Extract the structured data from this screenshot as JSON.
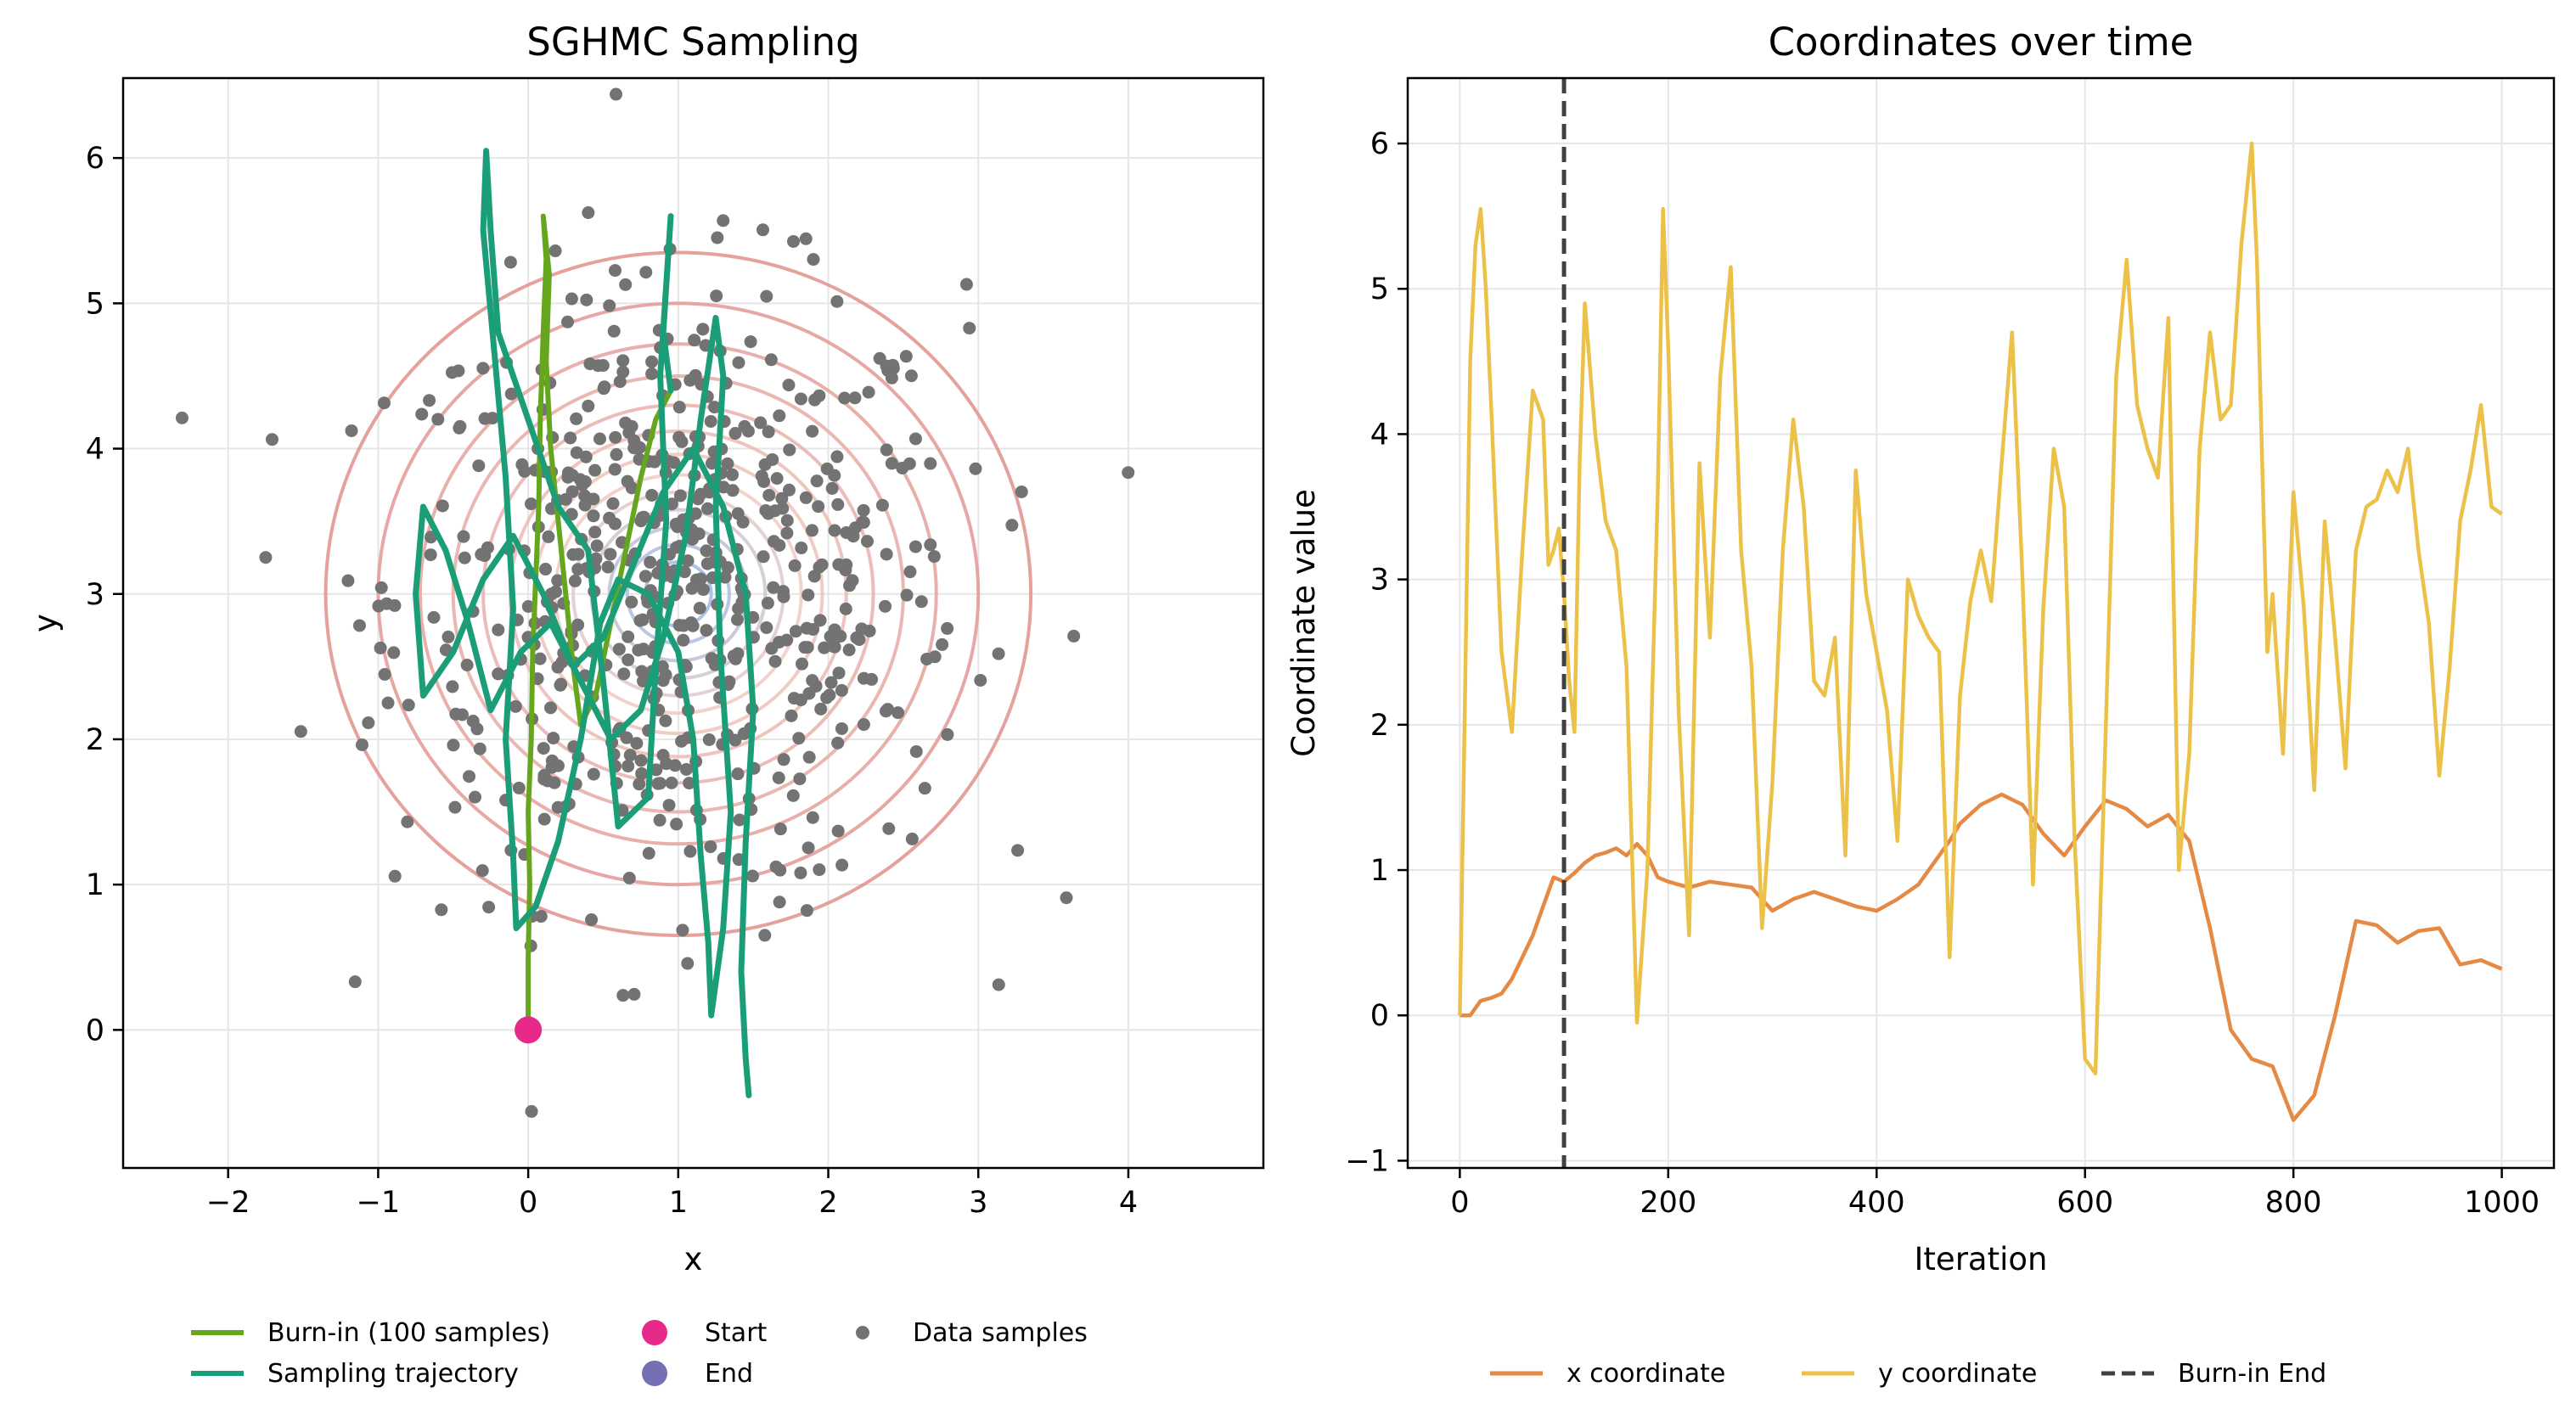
{
  "figure": {
    "colors": {
      "burnin": "#66a61e",
      "trajectory": "#1b9e77",
      "start": "#e7298a",
      "end": "#7570b3",
      "data_samples": "#737373",
      "x_coord": "#e58a45",
      "y_coord": "#ecc14a",
      "burnin_end": "#404040",
      "contour_outer": "#e1918d",
      "contour_inner": "#9db7e6"
    }
  },
  "chart_data": [
    {
      "type": "scatter",
      "title": "SGHMC Sampling",
      "xlabel": "x",
      "ylabel": "y",
      "xlim": [
        -2.7,
        4.9
      ],
      "ylim": [
        -0.95,
        6.55
      ],
      "xticks": [
        -2,
        -1,
        0,
        1,
        2,
        3,
        4
      ],
      "yticks": [
        0,
        1,
        2,
        3,
        4,
        5,
        6
      ],
      "grid": true,
      "legend": {
        "placement": "below",
        "entries": [
          {
            "label": "Burn-in (100 samples)",
            "kind": "line",
            "color_key": "burnin"
          },
          {
            "label": "Start",
            "kind": "marker",
            "color_key": "start"
          },
          {
            "label": "Data samples",
            "kind": "dot",
            "color_key": "data_samples"
          },
          {
            "label": "Sampling trajectory",
            "kind": "line",
            "color_key": "trajectory"
          },
          {
            "label": "End",
            "kind": "marker",
            "color_key": "end"
          }
        ]
      },
      "contours": {
        "center": [
          1.0,
          3.0
        ],
        "radii": [
          2.35,
          2.0,
          1.72,
          1.5,
          1.3,
          1.12,
          0.96,
          0.82,
          0.7,
          0.58,
          0.46,
          0.34,
          0.22
        ]
      },
      "series": [
        {
          "name": "Burn-in (100 samples)",
          "points": [
            [
              0.0,
              0.0
            ],
            [
              0.0,
              0.5
            ],
            [
              0.01,
              1.0
            ],
            [
              0.0,
              1.5
            ],
            [
              0.02,
              2.0
            ],
            [
              0.03,
              2.6
            ],
            [
              0.05,
              3.1
            ],
            [
              0.07,
              3.6
            ],
            [
              0.08,
              4.2
            ],
            [
              0.1,
              4.8
            ],
            [
              0.12,
              5.3
            ],
            [
              0.1,
              5.6
            ],
            [
              0.14,
              5.2
            ],
            [
              0.12,
              4.6
            ],
            [
              0.15,
              4.0
            ],
            [
              0.2,
              3.5
            ],
            [
              0.25,
              3.0
            ],
            [
              0.3,
              2.5
            ],
            [
              0.35,
              2.1
            ],
            [
              0.45,
              2.3
            ],
            [
              0.55,
              2.8
            ],
            [
              0.65,
              3.3
            ],
            [
              0.75,
              3.8
            ],
            [
              0.85,
              4.2
            ],
            [
              0.95,
              4.4
            ]
          ]
        },
        {
          "name": "Sampling trajectory",
          "points": [
            [
              0.95,
              4.4
            ],
            [
              0.9,
              4.8
            ],
            [
              0.95,
              5.6
            ],
            [
              0.88,
              4.5
            ],
            [
              0.92,
              3.5
            ],
            [
              0.85,
              2.5
            ],
            [
              0.8,
              1.6
            ],
            [
              0.6,
              1.4
            ],
            [
              0.5,
              2.4
            ],
            [
              0.4,
              3.3
            ],
            [
              0.2,
              3.6
            ],
            [
              0.0,
              4.2
            ],
            [
              -0.2,
              4.8
            ],
            [
              -0.25,
              5.5
            ],
            [
              -0.28,
              6.05
            ],
            [
              -0.3,
              5.5
            ],
            [
              -0.22,
              4.6
            ],
            [
              -0.15,
              3.8
            ],
            [
              -0.1,
              2.9
            ],
            [
              -0.15,
              2.0
            ],
            [
              -0.1,
              1.2
            ],
            [
              -0.08,
              0.7
            ],
            [
              0.05,
              0.85
            ],
            [
              0.2,
              1.3
            ],
            [
              0.35,
              2.0
            ],
            [
              0.48,
              2.8
            ],
            [
              0.6,
              3.1
            ],
            [
              0.8,
              3.0
            ],
            [
              1.0,
              2.6
            ],
            [
              1.1,
              2.0
            ],
            [
              1.15,
              1.2
            ],
            [
              1.2,
              0.6
            ],
            [
              1.22,
              0.1
            ],
            [
              1.3,
              0.7
            ],
            [
              1.35,
              1.5
            ],
            [
              1.28,
              2.6
            ],
            [
              1.25,
              3.6
            ],
            [
              1.3,
              4.5
            ],
            [
              1.25,
              4.9
            ],
            [
              1.15,
              4.2
            ],
            [
              1.05,
              3.4
            ],
            [
              0.9,
              2.7
            ],
            [
              0.75,
              2.2
            ],
            [
              0.55,
              2.0
            ],
            [
              0.35,
              2.4
            ],
            [
              0.15,
              2.8
            ],
            [
              -0.05,
              2.6
            ],
            [
              -0.25,
              2.2
            ],
            [
              -0.4,
              2.8
            ],
            [
              -0.55,
              3.3
            ],
            [
              -0.7,
              3.6
            ],
            [
              -0.75,
              3.0
            ],
            [
              -0.7,
              2.3
            ],
            [
              -0.5,
              2.6
            ],
            [
              -0.3,
              3.1
            ],
            [
              -0.1,
              3.4
            ],
            [
              0.1,
              3.0
            ],
            [
              0.3,
              2.5
            ],
            [
              0.5,
              2.7
            ],
            [
              0.7,
              3.2
            ],
            [
              0.9,
              3.7
            ],
            [
              1.1,
              4.0
            ],
            [
              1.3,
              3.6
            ],
            [
              1.45,
              3.0
            ],
            [
              1.5,
              2.2
            ],
            [
              1.45,
              1.3
            ],
            [
              1.42,
              0.4
            ],
            [
              1.45,
              -0.2
            ],
            [
              1.47,
              -0.45
            ]
          ]
        }
      ],
      "start": [
        0.0,
        0.0
      ],
      "end": [
        1.47,
        -0.45
      ]
    },
    {
      "type": "line",
      "title": "Coordinates over time",
      "xlabel": "Iteration",
      "ylabel": "Coordinate value",
      "xlim": [
        -50,
        1050
      ],
      "ylim": [
        -1.05,
        6.45
      ],
      "xticks": [
        0,
        200,
        400,
        600,
        800,
        1000
      ],
      "yticks": [
        -1,
        0,
        1,
        2,
        3,
        4,
        5,
        6
      ],
      "grid": true,
      "burnin_end": 100,
      "legend": {
        "placement": "below",
        "entries": [
          {
            "label": "x coordinate",
            "kind": "line",
            "color_key": "x_coord"
          },
          {
            "label": "y coordinate",
            "kind": "line",
            "color_key": "y_coord"
          },
          {
            "label": "Burn-in End",
            "kind": "dashed",
            "color_key": "burnin_end"
          }
        ]
      },
      "series": [
        {
          "name": "x coordinate",
          "x": [
            0,
            10,
            20,
            30,
            40,
            50,
            60,
            70,
            80,
            90,
            100,
            110,
            120,
            130,
            140,
            150,
            160,
            170,
            180,
            190,
            200,
            220,
            240,
            260,
            280,
            300,
            320,
            340,
            360,
            380,
            400,
            420,
            440,
            460,
            470,
            480,
            500,
            520,
            540,
            560,
            580,
            600,
            620,
            640,
            660,
            680,
            700,
            720,
            740,
            760,
            780,
            800,
            820,
            840,
            860,
            880,
            900,
            920,
            940,
            960,
            980,
            1000
          ],
          "values": [
            0.0,
            0.0,
            0.1,
            0.12,
            0.15,
            0.25,
            0.4,
            0.55,
            0.75,
            0.95,
            0.92,
            0.98,
            1.05,
            1.1,
            1.12,
            1.15,
            1.1,
            1.18,
            1.1,
            0.95,
            0.92,
            0.88,
            0.92,
            0.9,
            0.88,
            0.72,
            0.8,
            0.85,
            0.8,
            0.75,
            0.72,
            0.8,
            0.9,
            1.1,
            1.2,
            1.32,
            1.45,
            1.52,
            1.45,
            1.25,
            1.1,
            1.3,
            1.48,
            1.42,
            1.3,
            1.38,
            1.2,
            0.6,
            -0.1,
            -0.3,
            -0.35,
            -0.72,
            -0.55,
            0.0,
            0.65,
            0.62,
            0.5,
            0.58,
            0.6,
            0.35,
            0.38,
            0.32
          ]
        },
        {
          "name": "y coordinate",
          "x": [
            0,
            5,
            10,
            15,
            20,
            25,
            30,
            40,
            50,
            60,
            70,
            80,
            85,
            90,
            95,
            100,
            105,
            110,
            115,
            120,
            130,
            140,
            150,
            160,
            170,
            180,
            190,
            195,
            200,
            210,
            220,
            230,
            240,
            250,
            260,
            270,
            280,
            290,
            300,
            310,
            320,
            330,
            340,
            350,
            360,
            370,
            380,
            390,
            400,
            410,
            420,
            430,
            440,
            450,
            460,
            470,
            480,
            490,
            500,
            510,
            520,
            530,
            540,
            550,
            560,
            570,
            580,
            590,
            600,
            610,
            620,
            630,
            640,
            650,
            660,
            670,
            680,
            690,
            700,
            710,
            720,
            730,
            740,
            750,
            760,
            765,
            770,
            775,
            780,
            790,
            800,
            810,
            820,
            830,
            840,
            850,
            860,
            870,
            880,
            890,
            900,
            910,
            920,
            930,
            940,
            950,
            960,
            970,
            980,
            990,
            1000
          ],
          "values": [
            0.0,
            2.2,
            4.5,
            5.3,
            5.55,
            5.0,
            4.2,
            2.5,
            1.95,
            3.2,
            4.3,
            4.1,
            3.1,
            3.2,
            3.35,
            2.9,
            2.3,
            1.95,
            3.8,
            4.9,
            4.0,
            3.4,
            3.2,
            2.4,
            -0.05,
            1.0,
            3.6,
            5.55,
            4.6,
            2.1,
            0.55,
            3.8,
            2.6,
            4.4,
            5.15,
            3.2,
            2.4,
            0.6,
            1.6,
            3.2,
            4.1,
            3.5,
            2.3,
            2.2,
            2.6,
            1.1,
            3.75,
            2.9,
            2.5,
            2.1,
            1.2,
            3.0,
            2.75,
            2.6,
            2.5,
            0.4,
            2.2,
            2.85,
            3.2,
            2.85,
            3.8,
            4.7,
            3.0,
            0.9,
            2.8,
            3.9,
            3.5,
            1.2,
            -0.3,
            -0.4,
            2.0,
            4.4,
            5.2,
            4.2,
            3.9,
            3.7,
            4.8,
            1.0,
            1.8,
            3.9,
            4.7,
            4.1,
            4.2,
            5.3,
            6.0,
            5.2,
            3.8,
            2.5,
            2.9,
            1.8,
            3.6,
            2.8,
            1.55,
            3.4,
            2.6,
            1.7,
            3.2,
            3.5,
            3.55,
            3.75,
            3.6,
            3.9,
            3.2,
            2.7,
            1.65,
            2.4,
            3.4,
            3.75,
            4.2,
            3.5,
            3.45
          ]
        }
      ]
    }
  ]
}
